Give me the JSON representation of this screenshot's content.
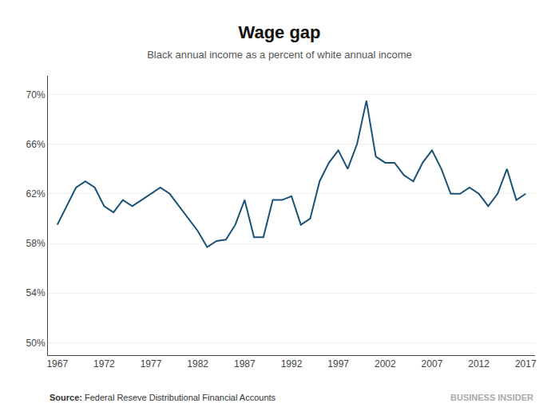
{
  "chart_data": {
    "type": "line",
    "title": "Wage gap",
    "subtitle": "Black annual income as a percent of white annual income",
    "annotations": [
      "Source:",
      "Federal Reseve Distributional Financial Accounts",
      "BUSINESS INSIDER"
    ],
    "x": [
      1967,
      1968,
      1969,
      1970,
      1971,
      1972,
      1973,
      1974,
      1975,
      1976,
      1977,
      1978,
      1979,
      1980,
      1981,
      1982,
      1983,
      1984,
      1985,
      1986,
      1987,
      1988,
      1989,
      1990,
      1991,
      1992,
      1993,
      1994,
      1995,
      1996,
      1997,
      1998,
      1999,
      2000,
      2001,
      2002,
      2003,
      2004,
      2005,
      2006,
      2007,
      2008,
      2009,
      2010,
      2011,
      2012,
      2013,
      2014,
      2015,
      2016,
      2017
    ],
    "values": [
      59.5,
      61.0,
      62.5,
      63.0,
      62.5,
      61.0,
      60.5,
      61.5,
      61.0,
      61.5,
      62.0,
      62.5,
      62.0,
      61.0,
      60.0,
      59.0,
      57.7,
      58.2,
      58.3,
      59.5,
      61.5,
      58.5,
      58.5,
      61.5,
      61.5,
      61.8,
      59.5,
      60.0,
      63.0,
      64.5,
      65.5,
      64.0,
      66.0,
      69.5,
      65.0,
      64.5,
      64.5,
      63.5,
      63.0,
      64.5,
      65.5,
      64.0,
      62.0,
      62.0,
      62.5,
      62.0,
      61.0,
      62.0,
      64.0,
      61.5,
      62.0
    ],
    "color": "#1a5276",
    "xlim": [
      1966,
      2018
    ],
    "xticks": [
      1967,
      1972,
      1977,
      1982,
      1987,
      1992,
      1997,
      2002,
      2007,
      2012,
      2017
    ],
    "ylim": [
      49,
      71.5
    ],
    "yticks": [
      {
        "value": 50,
        "label": "50%"
      },
      {
        "value": 54,
        "label": "54%"
      },
      {
        "value": 58,
        "label": "58%"
      },
      {
        "value": 62,
        "label": "62%"
      },
      {
        "value": 66,
        "label": "66%"
      },
      {
        "value": 70,
        "label": "70%"
      }
    ],
    "grid": "y"
  }
}
